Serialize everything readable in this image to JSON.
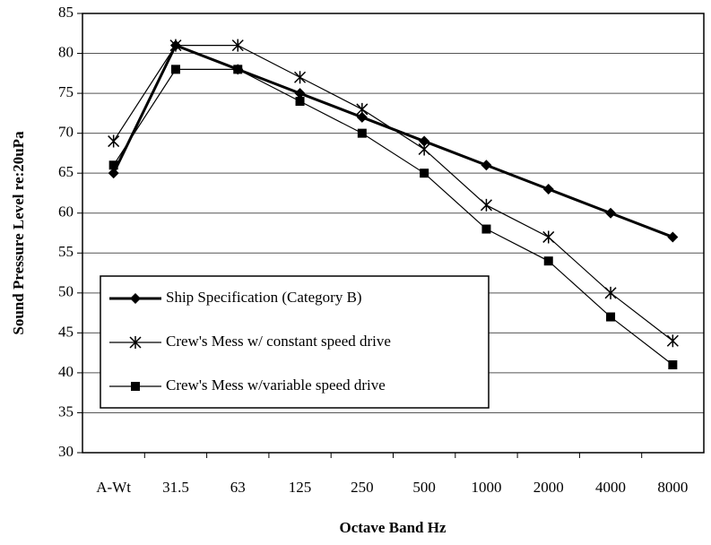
{
  "chart_data": {
    "type": "line",
    "x_label": "Octave Band Hz",
    "y_label": "Sound Pressure Level re:20uPa",
    "categories": [
      "A-Wt",
      "31.5",
      "63",
      "125",
      "250",
      "500",
      "1000",
      "2000",
      "4000",
      "8000"
    ],
    "ylim": [
      30,
      85
    ],
    "yticks": [
      30,
      35,
      40,
      45,
      50,
      55,
      60,
      65,
      70,
      75,
      80,
      85
    ],
    "grid": true,
    "legend": "lower left",
    "series": [
      {
        "name": "Ship Specification (Category B)",
        "color": "#000000",
        "marker": "diamond",
        "line_width": 3,
        "values": [
          65,
          81,
          78,
          75,
          72,
          69,
          66,
          63,
          60,
          57
        ]
      },
      {
        "name": "Crew's Mess w/ constant speed drive",
        "color": "#000000",
        "marker": "asterisk",
        "line_width": 1.2,
        "values": [
          69,
          81,
          81,
          77,
          73,
          68,
          61,
          57,
          50,
          44
        ]
      },
      {
        "name": "Crew's Mess w/variable speed drive",
        "color": "#000000",
        "marker": "square",
        "line_width": 1.2,
        "values": [
          66,
          78,
          78,
          74,
          70,
          65,
          58,
          54,
          47,
          41
        ]
      }
    ]
  }
}
